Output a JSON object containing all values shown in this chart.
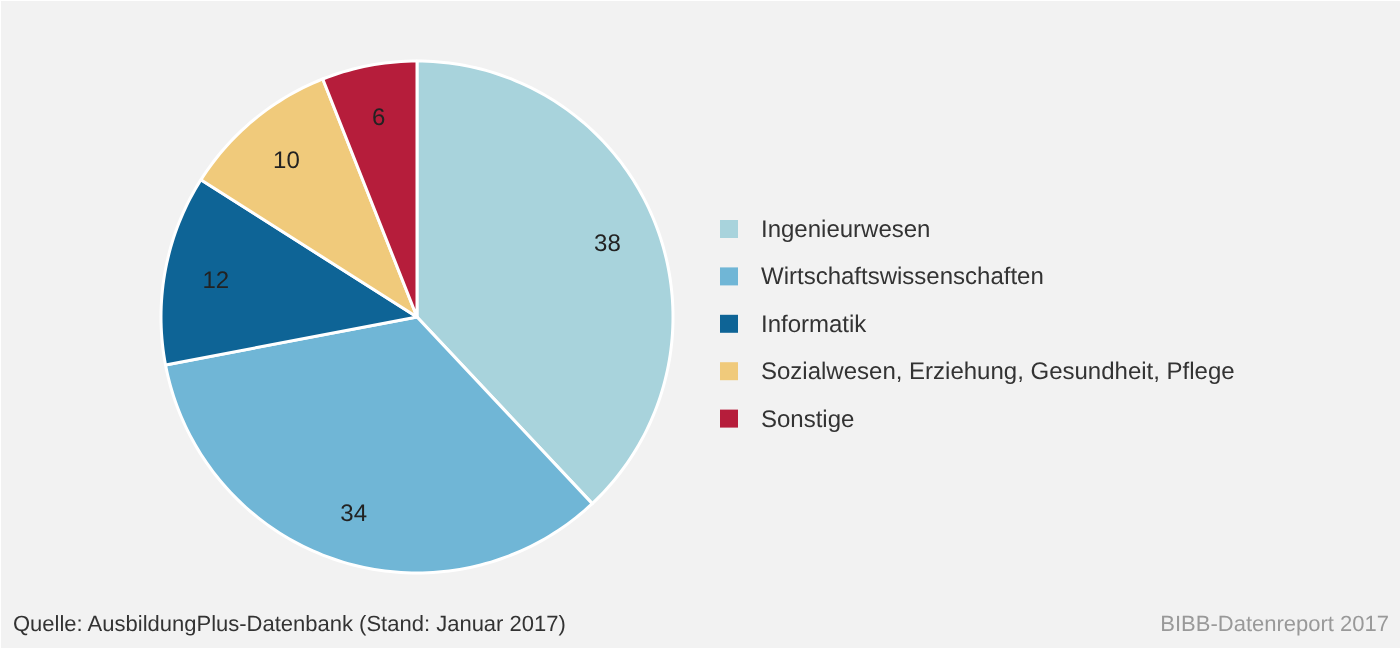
{
  "chart_data": {
    "type": "pie",
    "categories": [
      "Ingenieurwesen",
      "Wirtschaftswissenschaften",
      "Informatik",
      "Sozialwesen, Erziehung, Gesundheit, Pflege",
      "Sonstige"
    ],
    "values": [
      38,
      34,
      12,
      10,
      6
    ],
    "colors": [
      "#a8d3dc",
      "#70b6d6",
      "#0e6496",
      "#f0ca7b",
      "#b61d3b"
    ],
    "data_labels": true,
    "legend": "right",
    "annotations": [
      "Quelle: AusbildungPlus-Datenbank (Stand: Januar 2017)",
      "BIBB-Datenreport 2017"
    ]
  }
}
